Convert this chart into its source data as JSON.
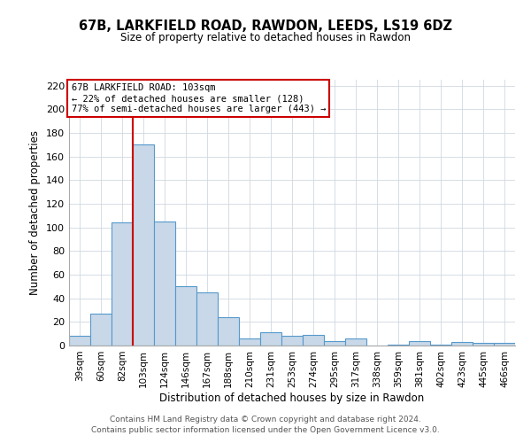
{
  "title": "67B, LARKFIELD ROAD, RAWDON, LEEDS, LS19 6DZ",
  "subtitle": "Size of property relative to detached houses in Rawdon",
  "xlabel": "Distribution of detached houses by size in Rawdon",
  "ylabel": "Number of detached properties",
  "categories": [
    "39sqm",
    "60sqm",
    "82sqm",
    "103sqm",
    "124sqm",
    "146sqm",
    "167sqm",
    "188sqm",
    "210sqm",
    "231sqm",
    "253sqm",
    "274sqm",
    "295sqm",
    "317sqm",
    "338sqm",
    "359sqm",
    "381sqm",
    "402sqm",
    "423sqm",
    "445sqm",
    "466sqm"
  ],
  "values": [
    8,
    27,
    104,
    170,
    105,
    50,
    45,
    24,
    6,
    11,
    8,
    9,
    4,
    6,
    0,
    1,
    4,
    1,
    3,
    2,
    2
  ],
  "bar_color": "#c8d8e8",
  "bar_edge_color": "#5599cc",
  "vline_color": "#cc0000",
  "ylim": [
    0,
    225
  ],
  "yticks": [
    0,
    20,
    40,
    60,
    80,
    100,
    120,
    140,
    160,
    180,
    200,
    220
  ],
  "annotation_title": "67B LARKFIELD ROAD: 103sqm",
  "annotation_line1": "← 22% of detached houses are smaller (128)",
  "annotation_line2": "77% of semi-detached houses are larger (443) →",
  "annotation_box_color": "#ffffff",
  "annotation_box_edge": "#cc0000",
  "footer1": "Contains HM Land Registry data © Crown copyright and database right 2024.",
  "footer2": "Contains public sector information licensed under the Open Government Licence v3.0."
}
